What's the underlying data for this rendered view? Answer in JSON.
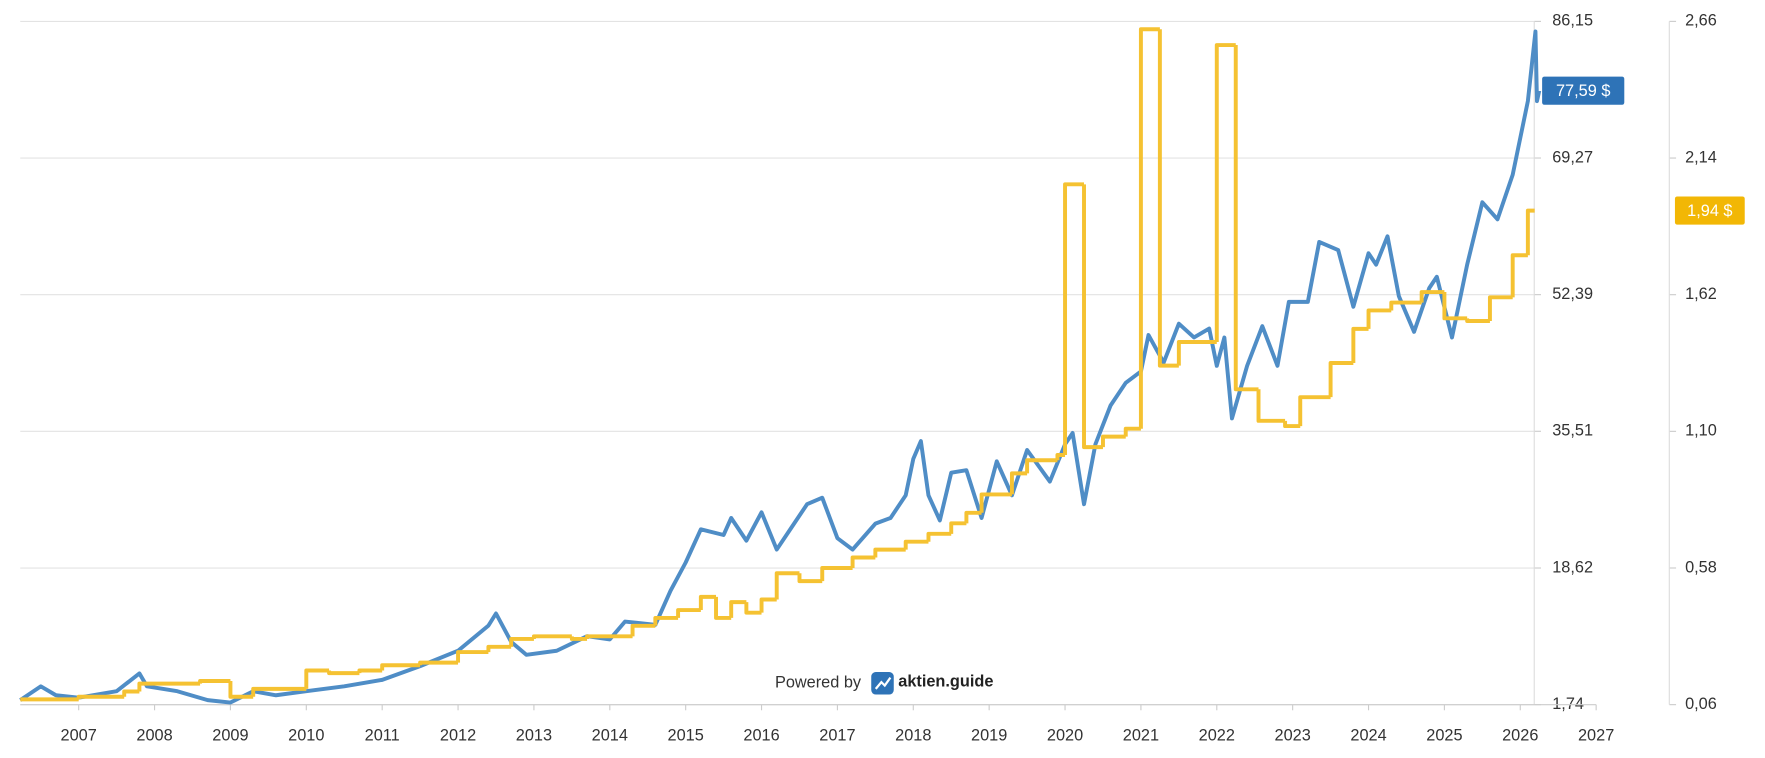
{
  "chart_data": {
    "type": "line",
    "xlim": [
      2006.23,
      2027
    ],
    "xticks": [
      2007,
      2008,
      2009,
      2010,
      2011,
      2012,
      2013,
      2014,
      2015,
      2016,
      2017,
      2018,
      2019,
      2020,
      2021,
      2022,
      2023,
      2024,
      2025,
      2026,
      2027
    ],
    "ylim": [
      1.74,
      86.15
    ],
    "yticks": [
      {
        "value": 1.74,
        "label": "1,74"
      },
      {
        "value": 18.62,
        "label": "18,62"
      },
      {
        "value": 35.51,
        "label": "35,51"
      },
      {
        "value": 52.39,
        "label": "52,39"
      },
      {
        "value": 69.27,
        "label": "69,27"
      },
      {
        "value": 86.15,
        "label": "86,15"
      }
    ],
    "y2lim": [
      0.06,
      2.66
    ],
    "y2ticks": [
      {
        "value": 0.06,
        "label": "0,06"
      },
      {
        "value": 0.58,
        "label": "0,58"
      },
      {
        "value": 1.1,
        "label": "1,10"
      },
      {
        "value": 1.62,
        "label": "1,62"
      },
      {
        "value": 2.14,
        "label": "2,14"
      },
      {
        "value": 2.66,
        "label": "2,66"
      }
    ],
    "grid": true,
    "credit": {
      "prefix": "Powered by",
      "brand": "aktien.guide"
    },
    "series": [
      {
        "color": "#4f8dc6",
        "badge_color": "#2e73b7",
        "end_label": {
          "value": 77.59,
          "label": "77,59 $"
        },
        "x": [
          2006.23,
          2006.5,
          2006.7,
          2007.0,
          2007.5,
          2007.8,
          2007.9,
          2008.3,
          2008.7,
          2009.0,
          2009.3,
          2009.6,
          2010.0,
          2010.5,
          2011.0,
          2011.5,
          2012.0,
          2012.4,
          2012.5,
          2012.7,
          2012.9,
          2013.3,
          2013.7,
          2014.0,
          2014.2,
          2014.6,
          2014.8,
          2015.0,
          2015.2,
          2015.5,
          2015.6,
          2015.8,
          2016.0,
          2016.2,
          2016.4,
          2016.6,
          2016.8,
          2017.0,
          2017.2,
          2017.5,
          2017.7,
          2017.9,
          2018.0,
          2018.1,
          2018.2,
          2018.35,
          2018.5,
          2018.7,
          2018.9,
          2019.1,
          2019.3,
          2019.5,
          2019.8,
          2020.0,
          2020.1,
          2020.25,
          2020.4,
          2020.6,
          2020.8,
          2021.0,
          2021.1,
          2021.3,
          2021.5,
          2021.7,
          2021.9,
          2022.0,
          2022.1,
          2022.2,
          2022.4,
          2022.6,
          2022.8,
          2022.95,
          2023.2,
          2023.35,
          2023.6,
          2023.8,
          2024.0,
          2024.1,
          2024.25,
          2024.4,
          2024.6,
          2024.8,
          2024.9,
          2025.1,
          2025.3,
          2025.5,
          2025.7,
          2025.9,
          2026.1,
          2026.2,
          2026.22,
          2026.25
        ],
        "values": [
          2.3,
          4.0,
          2.9,
          2.6,
          3.4,
          5.6,
          4.0,
          3.4,
          2.3,
          2.0,
          3.4,
          2.9,
          3.4,
          4.0,
          4.8,
          6.5,
          8.4,
          11.5,
          13.0,
          9.5,
          7.9,
          8.4,
          10.2,
          9.8,
          12.0,
          11.6,
          15.8,
          19.3,
          23.4,
          22.7,
          24.8,
          22.0,
          25.5,
          20.9,
          23.7,
          26.5,
          27.3,
          22.3,
          20.9,
          24.1,
          24.8,
          27.6,
          32.1,
          34.3,
          27.6,
          24.5,
          30.4,
          30.7,
          24.8,
          31.8,
          27.6,
          33.2,
          29.3,
          33.9,
          35.3,
          26.5,
          33.9,
          38.7,
          41.5,
          42.9,
          47.4,
          44.0,
          48.8,
          47.1,
          48.2,
          43.6,
          47.1,
          37.1,
          43.6,
          48.5,
          43.6,
          51.5,
          51.5,
          58.9,
          57.9,
          50.9,
          57.5,
          56.1,
          59.6,
          52.2,
          47.8,
          53.2,
          54.6,
          47.1,
          56.1,
          63.8,
          61.7,
          67.2,
          76.3,
          84.9,
          76.3,
          77.59
        ]
      },
      {
        "color": "#f5c232",
        "badge_color": "#f2b705",
        "axis": "y2",
        "step": "after",
        "end_label": {
          "value": 1.94,
          "label": "1,94 $"
        },
        "x": [
          2006.23,
          2007.0,
          2007.6,
          2007.8,
          2008.6,
          2009.0,
          2009.3,
          2010.0,
          2010.3,
          2010.7,
          2011.0,
          2011.5,
          2012.0,
          2012.4,
          2012.7,
          2013.0,
          2013.5,
          2013.7,
          2014.3,
          2014.6,
          2014.9,
          2015.2,
          2015.4,
          2015.6,
          2015.8,
          2016.0,
          2016.2,
          2016.5,
          2016.8,
          2017.2,
          2017.5,
          2017.9,
          2018.2,
          2018.5,
          2018.7,
          2018.9,
          2019.3,
          2019.5,
          2019.9,
          2020.0,
          2020.25,
          2020.5,
          2020.8,
          2021.0,
          2021.25,
          2021.5,
          2022.0,
          2022.25,
          2022.55,
          2022.9,
          2023.1,
          2023.5,
          2023.8,
          2024.0,
          2024.3,
          2024.7,
          2025.0,
          2025.3,
          2025.6,
          2025.9,
          2026.1,
          2026.19
        ],
        "values": [
          0.08,
          0.09,
          0.11,
          0.14,
          0.15,
          0.09,
          0.12,
          0.19,
          0.18,
          0.19,
          0.21,
          0.22,
          0.26,
          0.28,
          0.31,
          0.32,
          0.31,
          0.32,
          0.36,
          0.39,
          0.42,
          0.47,
          0.39,
          0.45,
          0.41,
          0.46,
          0.56,
          0.53,
          0.58,
          0.62,
          0.65,
          0.68,
          0.71,
          0.75,
          0.79,
          0.86,
          0.94,
          0.99,
          1.01,
          2.04,
          1.04,
          1.08,
          1.11,
          2.63,
          1.35,
          1.44,
          2.57,
          1.26,
          1.14,
          1.12,
          1.23,
          1.36,
          1.49,
          1.56,
          1.59,
          1.63,
          1.53,
          1.52,
          1.61,
          1.77,
          1.94,
          1.94
        ]
      }
    ]
  }
}
